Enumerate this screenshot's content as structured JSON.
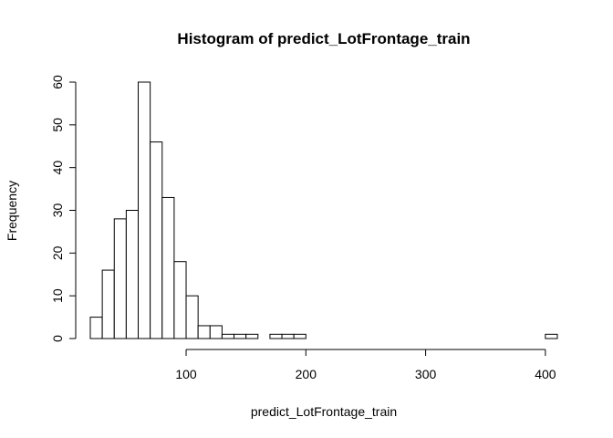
{
  "chart_data": {
    "type": "bar",
    "title": "Histogram of predict_LotFrontage_train",
    "xlabel": "predict_LotFrontage_train",
    "ylabel": "Frequency",
    "bin_width": 10,
    "x_start": 20,
    "bin_counts": [
      5,
      16,
      28,
      30,
      60,
      46,
      33,
      18,
      10,
      3,
      3,
      1,
      1,
      1,
      0,
      1,
      1,
      1,
      0,
      0,
      0,
      0,
      0,
      0,
      0,
      0,
      0,
      0,
      0,
      0,
      0,
      0,
      0,
      0,
      0,
      0,
      0,
      0,
      1
    ],
    "xlim": [
      20,
      410
    ],
    "ylim": [
      0,
      60
    ],
    "x_ticks": [
      100,
      200,
      300,
      400
    ],
    "y_ticks": [
      0,
      10,
      20,
      30,
      40,
      50,
      60
    ],
    "grid": false,
    "legend": "none",
    "bar_fill": "#ffffff",
    "bar_stroke": "#000000"
  }
}
